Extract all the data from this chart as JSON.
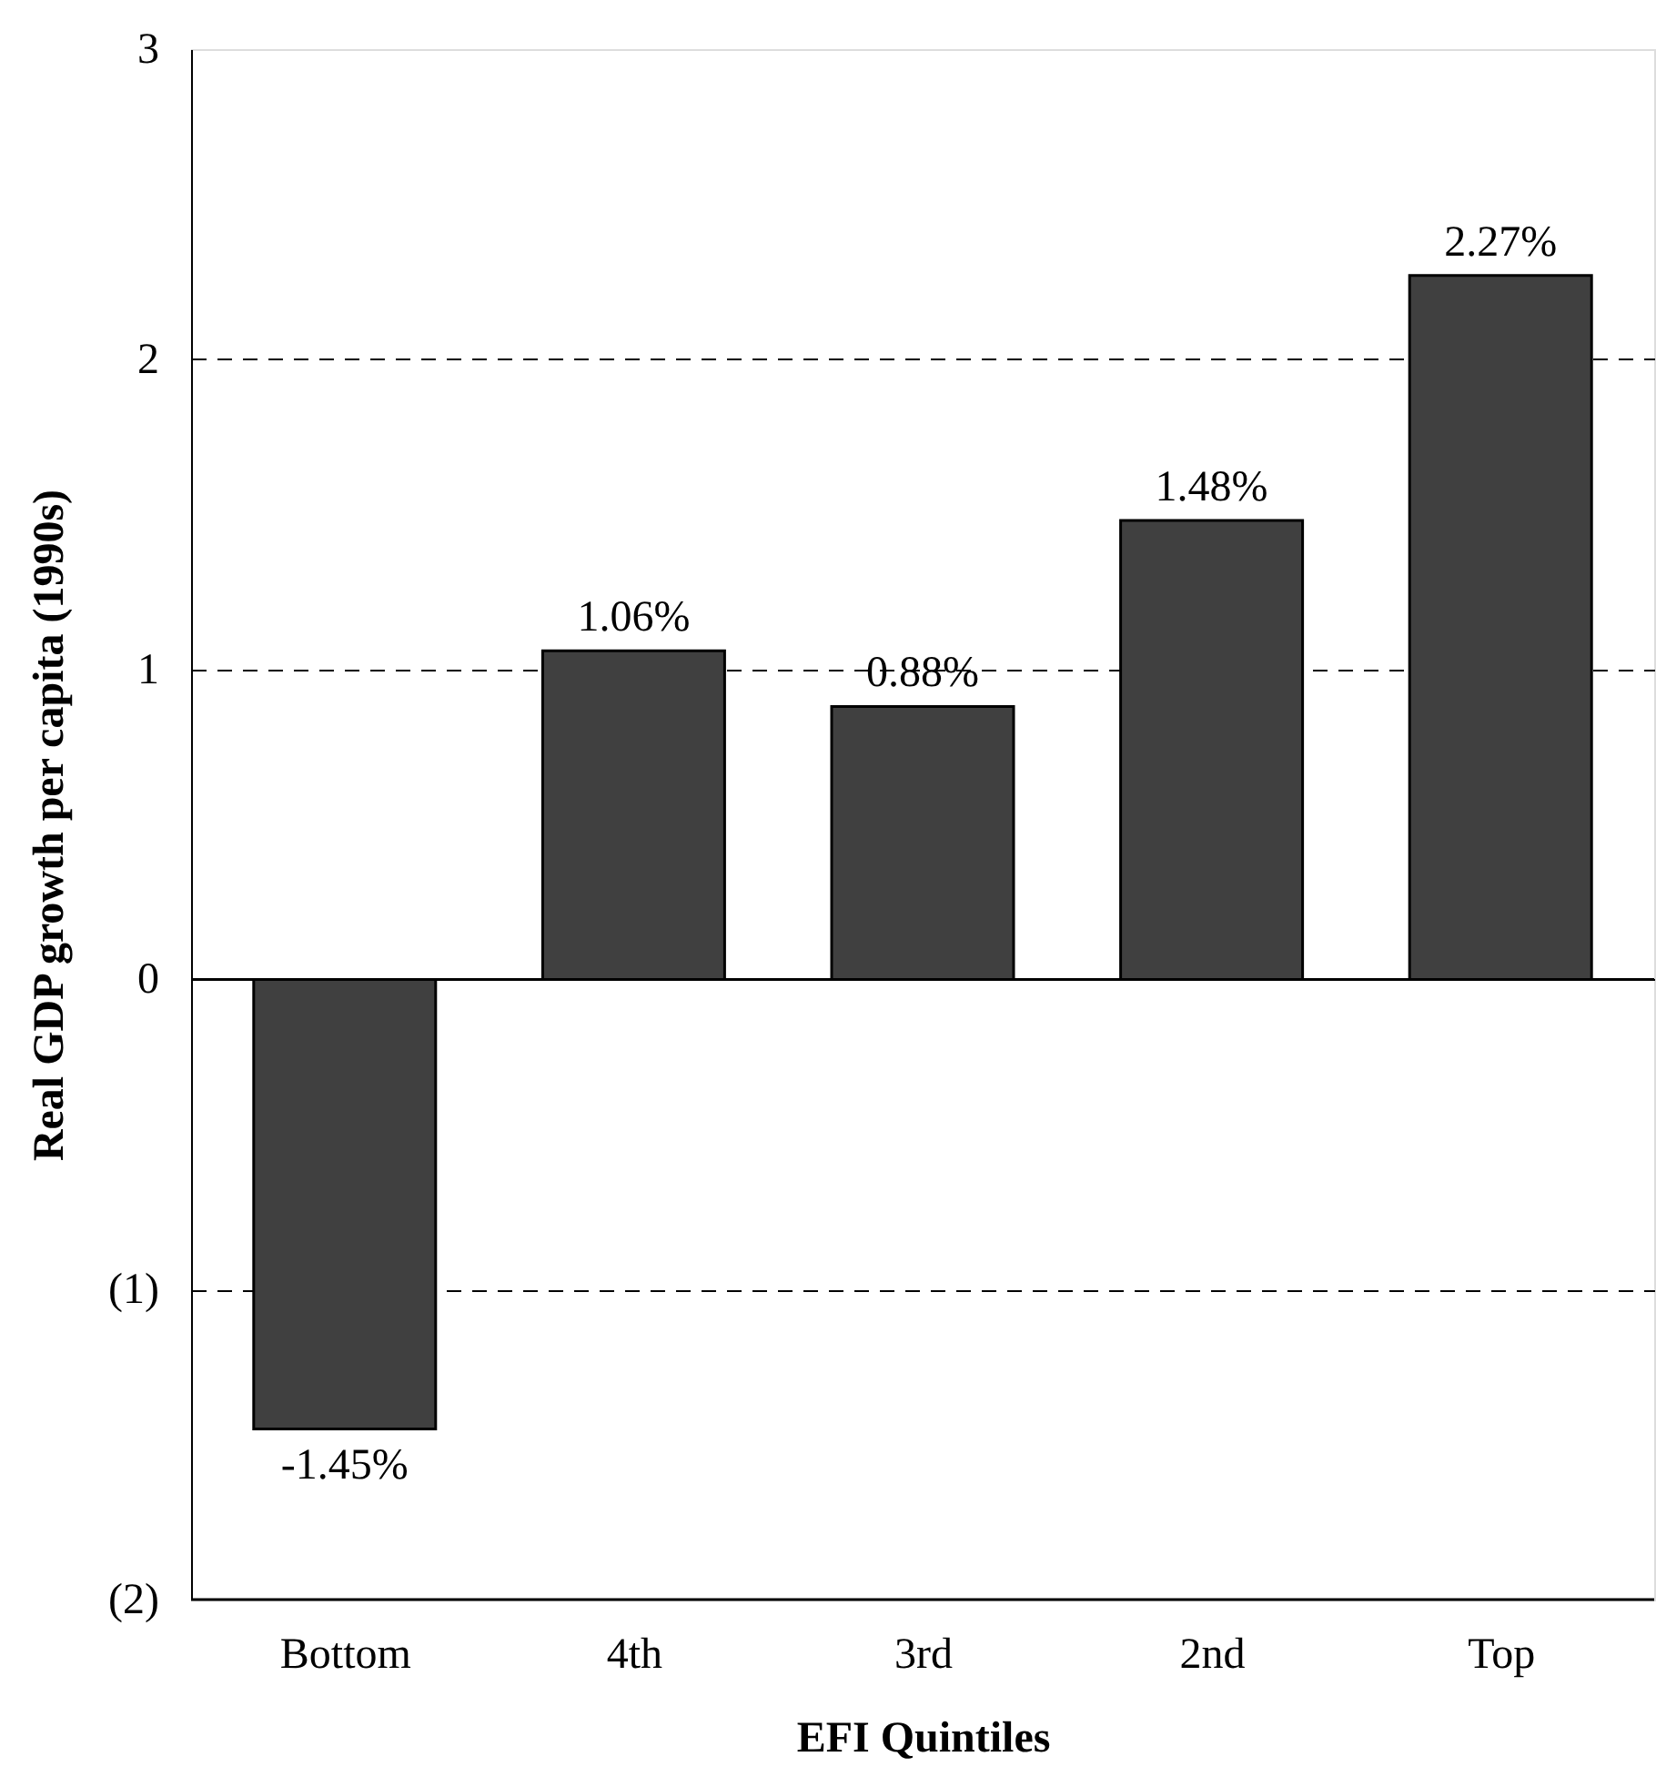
{
  "chart_data": {
    "type": "bar",
    "xlabel": "EFI Quintiles",
    "ylabel": "Real GDP growth per capita (1990s)",
    "categories": [
      "Bottom",
      "4th",
      "3rd",
      "2nd",
      "Top"
    ],
    "values": [
      -1.45,
      1.06,
      0.88,
      1.48,
      2.27
    ],
    "value_labels": [
      "-1.45%",
      "1.06%",
      "0.88%",
      "1.48%",
      "2.27%"
    ],
    "color": "#404040",
    "ylim": [
      -2,
      3
    ],
    "yticks": [
      {
        "value": -2,
        "label": "(2)"
      },
      {
        "value": -1,
        "label": "(1)"
      },
      0,
      1,
      2,
      3
    ],
    "grid": "y",
    "ref_lines": [
      {
        "axis": "y",
        "value": 0,
        "line_style": "solid",
        "color": "#000000"
      }
    ]
  }
}
